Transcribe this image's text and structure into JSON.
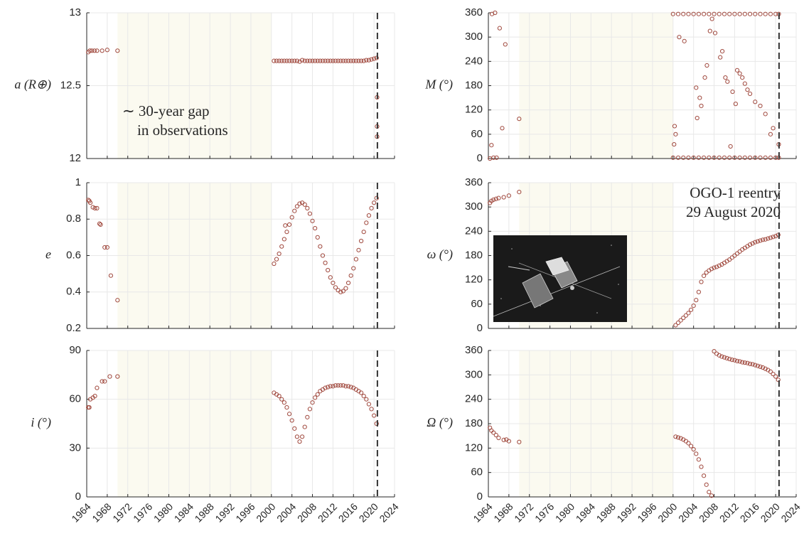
{
  "chart_data": [
    {
      "type": "scatter",
      "ylabel": "a (R⊕)",
      "xlim": [
        1964,
        2024
      ],
      "ylim": [
        12,
        13
      ],
      "xticks": [
        1964,
        1968,
        1972,
        1976,
        1980,
        1984,
        1988,
        1992,
        1996,
        2000,
        2004,
        2008,
        2012,
        2016,
        2020,
        2024
      ],
      "yticks": [
        12,
        12.5,
        13
      ],
      "xtick_labels": false,
      "grid": true,
      "shade_x": [
        1970,
        2000
      ],
      "reentry_x": 2020.66,
      "annotations": [
        "∼ 30-year gap",
        "in observations"
      ],
      "series": [
        {
          "color": "#a0493e",
          "x": [
            1964.3,
            1964.6,
            1965,
            1965.5,
            1966,
            1967,
            1968,
            1970,
            2000.5,
            2001,
            2001.5,
            2002,
            2002.5,
            2003,
            2003.5,
            2004,
            2004.5,
            2005,
            2005.5,
            2006,
            2006.5,
            2007,
            2007.5,
            2008,
            2008.5,
            2009,
            2009.5,
            2010,
            2010.5,
            2011,
            2011.5,
            2012,
            2012.5,
            2013,
            2013.5,
            2014,
            2014.5,
            2015,
            2015.5,
            2016,
            2016.5,
            2017,
            2017.5,
            2018,
            2018.5,
            2019,
            2019.5,
            2020,
            2020.5,
            2020.6,
            2020.6,
            2020.6
          ],
          "values": [
            12.73,
            12.74,
            12.74,
            12.74,
            12.74,
            12.74,
            12.745,
            12.74,
            12.67,
            12.67,
            12.67,
            12.67,
            12.67,
            12.67,
            12.67,
            12.67,
            12.67,
            12.67,
            12.665,
            12.675,
            12.67,
            12.67,
            12.67,
            12.67,
            12.67,
            12.67,
            12.67,
            12.67,
            12.67,
            12.67,
            12.67,
            12.67,
            12.67,
            12.67,
            12.67,
            12.67,
            12.67,
            12.67,
            12.67,
            12.67,
            12.67,
            12.67,
            12.67,
            12.67,
            12.675,
            12.675,
            12.68,
            12.685,
            12.69,
            12.42,
            12.22,
            12.15
          ]
        }
      ]
    },
    {
      "type": "scatter",
      "ylabel": "M (°)",
      "xlim": [
        1964,
        2024
      ],
      "ylim": [
        0,
        360
      ],
      "xticks": [
        1964,
        1968,
        1972,
        1976,
        1980,
        1984,
        1988,
        1992,
        1996,
        2000,
        2004,
        2008,
        2012,
        2016,
        2020,
        2024
      ],
      "yticks": [
        0,
        60,
        120,
        180,
        240,
        300,
        360
      ],
      "xtick_labels": false,
      "grid": true,
      "shade_x": [
        1970,
        2000
      ],
      "reentry_x": 2020.66,
      "series": [
        {
          "color": "#a0493e",
          "x": [
            1964.3,
            1964.6,
            1964.7,
            1965,
            1965.3,
            1965.6,
            1966.2,
            1966.7,
            1967.3,
            1970,
            2000,
            2001,
            2002,
            2003,
            2004,
            2005,
            2006,
            2007,
            2008,
            2009,
            2010,
            2011,
            2012,
            2013,
            2014,
            2015,
            2016,
            2017,
            2018,
            2019,
            2020,
            2020.6,
            2000,
            2001,
            2002,
            2003,
            2004,
            2005,
            2006,
            2007,
            2008,
            2009,
            2010,
            2011,
            2012,
            2013,
            2014,
            2015,
            2016,
            2017,
            2018,
            2019,
            2020,
            2020.6,
            2000.2,
            2000.3,
            2000.5,
            2001.2,
            2002.2,
            2004.5,
            2004.7,
            2005.2,
            2005.5,
            2006.2,
            2006.6,
            2007.2,
            2007.6,
            2008.2,
            2009.2,
            2009.6,
            2010.2,
            2010.6,
            2011.2,
            2011.6,
            2012.2,
            2012.5,
            2013,
            2013.5,
            2014,
            2014.5,
            2015,
            2016,
            2017,
            2018,
            2019,
            2019.5,
            2020.6
          ],
          "values": [
            0,
            33,
            357,
            2,
            360,
            2,
            322,
            75,
            282,
            98,
            357,
            357,
            357,
            357,
            357,
            357,
            357,
            357,
            357,
            357,
            357,
            357,
            357,
            357,
            357,
            357,
            357,
            357,
            357,
            357,
            357,
            357,
            2,
            2,
            2,
            2,
            2,
            2,
            2,
            2,
            2,
            2,
            2,
            2,
            2,
            2,
            2,
            2,
            2,
            2,
            2,
            2,
            2,
            2,
            35,
            80,
            60,
            300,
            290,
            175,
            100,
            150,
            130,
            200,
            230,
            315,
            345,
            310,
            250,
            265,
            200,
            190,
            30,
            165,
            135,
            218,
            210,
            200,
            185,
            170,
            160,
            140,
            130,
            110,
            60,
            75,
            35
          ]
        }
      ]
    },
    {
      "type": "scatter",
      "ylabel": "e",
      "xlim": [
        1964,
        2024
      ],
      "ylim": [
        0.2,
        1
      ],
      "xticks": [
        1964,
        1968,
        1972,
        1976,
        1980,
        1984,
        1988,
        1992,
        1996,
        2000,
        2004,
        2008,
        2012,
        2016,
        2020,
        2024
      ],
      "yticks": [
        0.2,
        0.4,
        0.6,
        0.8,
        1
      ],
      "xtick_labels": false,
      "grid": true,
      "shade_x": [
        1970,
        2000
      ],
      "reentry_x": 2020.66,
      "series": [
        {
          "color": "#a0493e",
          "x": [
            1964.3,
            1964.5,
            1964.7,
            1965.2,
            1965.6,
            1966,
            1966.5,
            1966.7,
            1967.5,
            1968,
            1968.7,
            1970,
            2000.5,
            2001,
            2001.5,
            2002,
            2002.5,
            2002.7,
            2003,
            2003.5,
            2004,
            2004.5,
            2005,
            2005.5,
            2006,
            2006.5,
            2007,
            2007.5,
            2008,
            2008.5,
            2009,
            2009.5,
            2010,
            2010.5,
            2011,
            2011.5,
            2012,
            2012.5,
            2013,
            2013.5,
            2014,
            2014.5,
            2015,
            2015.5,
            2016,
            2016.5,
            2017,
            2017.5,
            2018,
            2018.5,
            2019,
            2019.5,
            2020,
            2020.5
          ],
          "values": [
            0.905,
            0.9,
            0.89,
            0.865,
            0.86,
            0.86,
            0.775,
            0.77,
            0.645,
            0.645,
            0.49,
            0.355,
            0.555,
            0.58,
            0.61,
            0.65,
            0.69,
            0.765,
            0.73,
            0.77,
            0.81,
            0.845,
            0.87,
            0.885,
            0.89,
            0.88,
            0.86,
            0.83,
            0.79,
            0.75,
            0.7,
            0.65,
            0.6,
            0.56,
            0.52,
            0.48,
            0.45,
            0.425,
            0.41,
            0.4,
            0.405,
            0.42,
            0.45,
            0.49,
            0.53,
            0.58,
            0.63,
            0.68,
            0.73,
            0.78,
            0.82,
            0.86,
            0.89,
            0.915
          ]
        }
      ]
    },
    {
      "type": "scatter",
      "ylabel": "ω (°)",
      "xlim": [
        1964,
        2024
      ],
      "ylim": [
        0,
        360
      ],
      "xticks": [
        1964,
        1968,
        1972,
        1976,
        1980,
        1984,
        1988,
        1992,
        1996,
        2000,
        2004,
        2008,
        2012,
        2016,
        2020,
        2024
      ],
      "yticks": [
        0,
        60,
        120,
        180,
        240,
        300,
        360
      ],
      "xtick_labels": false,
      "grid": true,
      "shade_x": [
        1970,
        2000
      ],
      "reentry_x": 2020.66,
      "annotations": [
        "OGO-1 reentry",
        "29 August 2020"
      ],
      "series": [
        {
          "color": "#a0493e",
          "x": [
            1964.3,
            1964.6,
            1965,
            1965.5,
            1966,
            1967,
            1968,
            1970,
            2000.5,
            2001,
            2001.5,
            2002,
            2002.5,
            2003,
            2003.5,
            2004,
            2004.5,
            2005,
            2005.5,
            2006,
            2006.5,
            2007,
            2007.5,
            2008,
            2008.5,
            2009,
            2009.5,
            2010,
            2010.5,
            2011,
            2011.5,
            2012,
            2012.5,
            2013,
            2013.5,
            2014,
            2014.5,
            2015,
            2015.5,
            2016,
            2016.5,
            2017,
            2017.5,
            2018,
            2018.5,
            2019,
            2019.5,
            2020,
            2020.5
          ],
          "values": [
            310,
            315,
            318,
            320,
            322,
            324,
            328,
            337,
            8,
            14,
            20,
            26,
            32,
            38,
            46,
            56,
            70,
            90,
            115,
            130,
            138,
            143,
            147,
            150,
            152,
            155,
            158,
            162,
            166,
            170,
            175,
            180,
            185,
            190,
            195,
            199,
            203,
            207,
            210,
            213,
            215,
            217,
            219,
            220,
            222,
            224,
            226,
            228,
            231
          ]
        }
      ]
    },
    {
      "type": "scatter",
      "ylabel": "i (°)",
      "xlim": [
        1964,
        2024
      ],
      "ylim": [
        0,
        90
      ],
      "xticks": [
        1964,
        1968,
        1972,
        1976,
        1980,
        1984,
        1988,
        1992,
        1996,
        2000,
        2004,
        2008,
        2012,
        2016,
        2020,
        2024
      ],
      "yticks": [
        0,
        30,
        60,
        90
      ],
      "xtick_labels": true,
      "grid": true,
      "shade_x": [
        1970,
        2000
      ],
      "reentry_x": 2020.66,
      "series": [
        {
          "color": "#a0493e",
          "x": [
            1964.3,
            1964.5,
            1964.7,
            1965.2,
            1965.6,
            1966,
            1967,
            1967.5,
            1968.5,
            1970,
            2000.5,
            2001,
            2001.5,
            2002,
            2002.5,
            2003,
            2003.5,
            2004,
            2004.5,
            2005,
            2005.5,
            2006,
            2006.5,
            2007,
            2007.5,
            2008,
            2008.5,
            2009,
            2009.5,
            2010,
            2010.5,
            2011,
            2011.5,
            2012,
            2012.5,
            2013,
            2013.5,
            2014,
            2014.5,
            2015,
            2015.5,
            2016,
            2016.5,
            2017,
            2017.5,
            2018,
            2018.5,
            2019,
            2019.5,
            2020,
            2020.5
          ],
          "values": [
            55,
            55,
            60,
            61,
            62,
            67,
            71,
            71,
            74,
            74,
            64,
            63,
            62,
            60,
            58,
            55,
            51,
            47,
            42,
            37,
            34,
            37,
            43,
            49,
            54,
            58,
            61,
            63,
            65,
            66,
            67,
            67.5,
            68,
            68,
            68.5,
            68.5,
            68.5,
            68.5,
            68,
            68,
            67.5,
            67,
            66,
            65,
            64,
            62,
            60,
            57,
            54,
            50,
            45
          ]
        }
      ]
    },
    {
      "type": "scatter",
      "ylabel": "Ω (°)",
      "xlim": [
        1964,
        2024
      ],
      "ylim": [
        0,
        360
      ],
      "xticks": [
        1964,
        1968,
        1972,
        1976,
        1980,
        1984,
        1988,
        1992,
        1996,
        2000,
        2004,
        2008,
        2012,
        2016,
        2020,
        2024
      ],
      "yticks": [
        0,
        60,
        120,
        180,
        240,
        300,
        360
      ],
      "xtick_labels": true,
      "grid": true,
      "shade_x": [
        1970,
        2000
      ],
      "reentry_x": 2020.66,
      "series": [
        {
          "color": "#a0493e",
          "x": [
            1964.3,
            1964.6,
            1965,
            1965.5,
            1966,
            1967,
            1967.5,
            1968,
            1970,
            2000.5,
            2001,
            2001.5,
            2002,
            2002.5,
            2003,
            2003.5,
            2004,
            2004.5,
            2005,
            2005.5,
            2006,
            2006.5,
            2007,
            2007.5,
            2008,
            2008.5,
            2009,
            2009.5,
            2010,
            2010.5,
            2011,
            2011.5,
            2012,
            2012.5,
            2013,
            2013.5,
            2014,
            2014.5,
            2015,
            2015.5,
            2016,
            2016.5,
            2017,
            2017.5,
            2018,
            2018.5,
            2019,
            2019.5,
            2020,
            2020.5
          ],
          "values": [
            170,
            163,
            158,
            152,
            145,
            140,
            141,
            137,
            135,
            148,
            146,
            144,
            141,
            137,
            132,
            125,
            117,
            106,
            92,
            74,
            52,
            30,
            12,
            3,
            358,
            352,
            348,
            345,
            343,
            341,
            339,
            337,
            336,
            334,
            333,
            331,
            330,
            329,
            327,
            326,
            324,
            322,
            320,
            318,
            315,
            312,
            308,
            302,
            296,
            288
          ]
        }
      ]
    }
  ]
}
